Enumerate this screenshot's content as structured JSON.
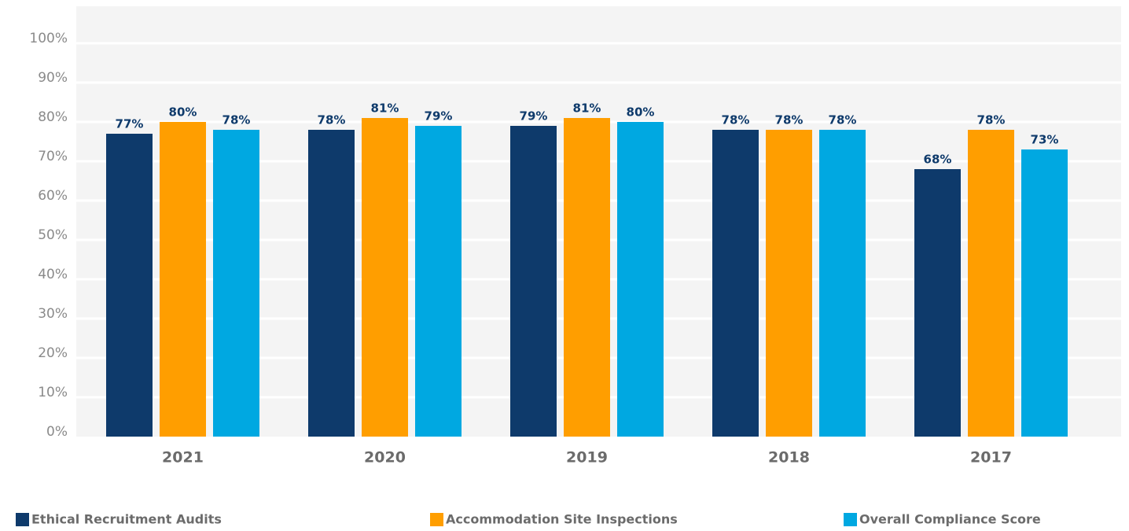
{
  "chart_data": {
    "type": "bar",
    "categories": [
      "2021",
      "2020",
      "2019",
      "2018",
      "2017"
    ],
    "series": [
      {
        "name": "Ethical Recruitment Audits",
        "color": "#0e3a6b",
        "values": [
          77,
          78,
          79,
          78,
          68
        ],
        "value_labels": [
          "77%",
          "78%",
          "79%",
          "78%",
          "68%"
        ]
      },
      {
        "name": "Accommodation Site Inspections",
        "color": "#ff9e00",
        "values": [
          80,
          81,
          81,
          78,
          78
        ],
        "value_labels": [
          "80%",
          "81%",
          "81%",
          "78%",
          "78%"
        ]
      },
      {
        "name": "Overall Compliance Score",
        "color": "#00a8e1",
        "values": [
          78,
          79,
          80,
          78,
          73
        ],
        "value_labels": [
          "78%",
          "79%",
          "80%",
          "78%",
          "73%"
        ]
      }
    ],
    "ylim": [
      0,
      100
    ],
    "yticks": [
      {
        "value": 0,
        "label": "0%"
      },
      {
        "value": 10,
        "label": "10%"
      },
      {
        "value": 20,
        "label": "20%"
      },
      {
        "value": 30,
        "label": "30%"
      },
      {
        "value": 40,
        "label": "40%"
      },
      {
        "value": 50,
        "label": "50%"
      },
      {
        "value": 60,
        "label": "60%"
      },
      {
        "value": 70,
        "label": "70%"
      },
      {
        "value": 80,
        "label": "80%"
      },
      {
        "value": 90,
        "label": "90%"
      },
      {
        "value": 100,
        "label": "100%"
      }
    ],
    "grid": true,
    "legend": "bottom"
  }
}
